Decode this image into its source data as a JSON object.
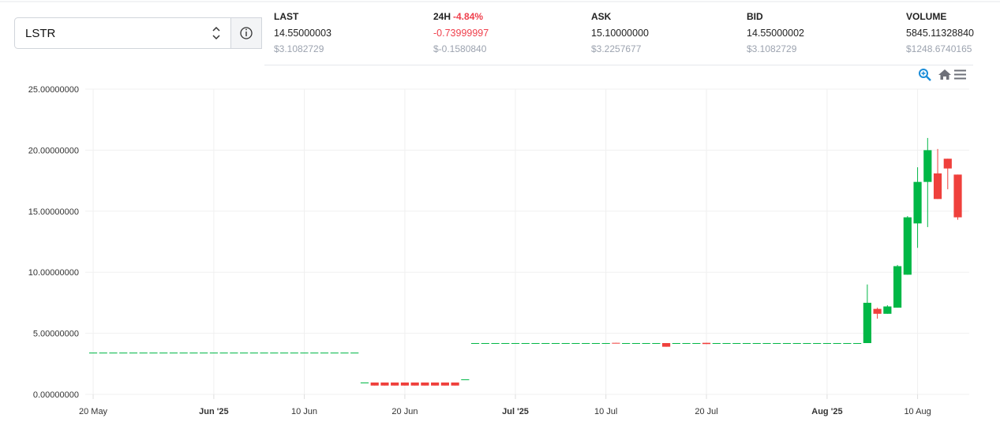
{
  "header": {
    "symbol": "LSTR",
    "stats": [
      {
        "label": "LAST",
        "value": "14.55000003",
        "usd": "$3.1082729"
      },
      {
        "label": "24H",
        "change": "-4.84%",
        "value": "-0.73999997",
        "usd": "$-0.1580840",
        "color": "#ef3f4c"
      },
      {
        "label": "ASK",
        "value": "15.10000000",
        "usd": "$3.2257677"
      },
      {
        "label": "BID",
        "value": "14.55000002",
        "usd": "$3.1082729"
      },
      {
        "label": "VOLUME",
        "value": "5845.11328840",
        "usd": "$1248.6740165"
      }
    ]
  },
  "chart_data": {
    "type": "candlestick",
    "up_color": "#00b746",
    "down_color": "#ef403c",
    "grid": true,
    "x": [
      "2025-05-20",
      "2025-05-21",
      "2025-05-22",
      "2025-05-23",
      "2025-05-24",
      "2025-05-25",
      "2025-05-26",
      "2025-05-27",
      "2025-05-28",
      "2025-05-29",
      "2025-05-30",
      "2025-05-31",
      "2025-06-01",
      "2025-06-02",
      "2025-06-03",
      "2025-06-04",
      "2025-06-05",
      "2025-06-06",
      "2025-06-07",
      "2025-06-08",
      "2025-06-09",
      "2025-06-10",
      "2025-06-11",
      "2025-06-12",
      "2025-06-13",
      "2025-06-14",
      "2025-06-15",
      "2025-06-16",
      "2025-06-17",
      "2025-06-18",
      "2025-06-19",
      "2025-06-20",
      "2025-06-21",
      "2025-06-22",
      "2025-06-23",
      "2025-06-24",
      "2025-06-25",
      "2025-06-26",
      "2025-06-27",
      "2025-06-28",
      "2025-06-29",
      "2025-06-30",
      "2025-07-01",
      "2025-07-02",
      "2025-07-03",
      "2025-07-04",
      "2025-07-05",
      "2025-07-06",
      "2025-07-07",
      "2025-07-08",
      "2025-07-09",
      "2025-07-10",
      "2025-07-11",
      "2025-07-12",
      "2025-07-13",
      "2025-07-14",
      "2025-07-15",
      "2025-07-16",
      "2025-07-17",
      "2025-07-18",
      "2025-07-19",
      "2025-07-20",
      "2025-07-21",
      "2025-07-22",
      "2025-07-23",
      "2025-07-24",
      "2025-07-25",
      "2025-07-26",
      "2025-07-27",
      "2025-07-28",
      "2025-07-29",
      "2025-07-30",
      "2025-07-31",
      "2025-08-01",
      "2025-08-02",
      "2025-08-03",
      "2025-08-04",
      "2025-08-05",
      "2025-08-06",
      "2025-08-07",
      "2025-08-08",
      "2025-08-09",
      "2025-08-10",
      "2025-08-11",
      "2025-08-12",
      "2025-08-13",
      "2025-08-14"
    ],
    "open": [
      3.42,
      3.42,
      3.42,
      3.42,
      3.42,
      3.42,
      3.42,
      3.42,
      3.42,
      3.42,
      3.42,
      3.42,
      3.42,
      3.42,
      3.42,
      3.42,
      3.42,
      3.42,
      3.42,
      3.42,
      3.42,
      3.42,
      3.42,
      3.42,
      3.42,
      3.42,
      3.42,
      0.97,
      0.97,
      0.97,
      0.97,
      0.97,
      0.97,
      0.97,
      0.97,
      0.97,
      0.97,
      1.23,
      4.2,
      4.2,
      4.2,
      4.2,
      4.2,
      4.2,
      4.2,
      4.2,
      4.2,
      4.2,
      4.2,
      4.2,
      4.2,
      4.2,
      4.22,
      4.2,
      4.2,
      4.2,
      4.2,
      4.2,
      4.2,
      4.2,
      4.2,
      4.22,
      4.2,
      4.2,
      4.2,
      4.2,
      4.2,
      4.2,
      4.2,
      4.2,
      4.2,
      4.2,
      4.2,
      4.2,
      4.2,
      4.2,
      4.2,
      4.2,
      7.0,
      6.6,
      7.1,
      9.8,
      14.0,
      17.4,
      18.1,
      19.3,
      18.0
    ],
    "high": [
      3.42,
      3.42,
      3.42,
      3.42,
      3.42,
      3.42,
      3.42,
      3.42,
      3.42,
      3.42,
      3.42,
      3.42,
      3.42,
      3.42,
      3.42,
      3.42,
      3.42,
      3.42,
      3.42,
      3.42,
      3.42,
      3.42,
      3.42,
      3.42,
      3.42,
      3.42,
      3.42,
      0.97,
      0.97,
      0.97,
      0.97,
      0.97,
      0.97,
      0.97,
      0.97,
      0.97,
      0.97,
      1.23,
      4.2,
      4.2,
      4.2,
      4.2,
      4.2,
      4.2,
      4.2,
      4.2,
      4.2,
      4.2,
      4.2,
      4.2,
      4.2,
      4.2,
      4.22,
      4.2,
      4.2,
      4.2,
      4.2,
      4.2,
      4.2,
      4.2,
      4.2,
      4.22,
      4.2,
      4.2,
      4.2,
      4.2,
      4.2,
      4.2,
      4.2,
      4.2,
      4.2,
      4.2,
      4.2,
      4.2,
      4.2,
      4.2,
      4.2,
      9.0,
      7.1,
      7.3,
      10.6,
      14.6,
      18.6,
      21.0,
      20.1,
      19.3,
      18.0
    ],
    "low": [
      3.42,
      3.42,
      3.42,
      3.42,
      3.42,
      3.42,
      3.42,
      3.42,
      3.42,
      3.42,
      3.42,
      3.42,
      3.42,
      3.42,
      3.42,
      3.42,
      3.42,
      3.42,
      3.42,
      3.42,
      3.42,
      3.42,
      3.42,
      3.42,
      3.42,
      3.42,
      3.42,
      0.97,
      0.72,
      0.72,
      0.72,
      0.72,
      0.72,
      0.72,
      0.72,
      0.72,
      0.72,
      1.23,
      4.2,
      4.2,
      4.2,
      4.2,
      4.2,
      4.2,
      4.2,
      4.2,
      4.2,
      4.2,
      4.2,
      4.2,
      4.2,
      4.2,
      4.18,
      4.2,
      4.2,
      4.2,
      4.2,
      3.9,
      4.2,
      4.2,
      4.2,
      4.12,
      4.2,
      4.2,
      4.2,
      4.2,
      4.2,
      4.2,
      4.2,
      4.2,
      4.2,
      4.2,
      4.2,
      4.2,
      4.2,
      4.2,
      4.2,
      4.2,
      6.2,
      6.6,
      7.1,
      9.8,
      12.0,
      13.7,
      16.0,
      16.8,
      14.3
    ],
    "close": [
      3.42,
      3.42,
      3.42,
      3.42,
      3.42,
      3.42,
      3.42,
      3.42,
      3.42,
      3.42,
      3.42,
      3.42,
      3.42,
      3.42,
      3.42,
      3.42,
      3.42,
      3.42,
      3.42,
      3.42,
      3.42,
      3.42,
      3.42,
      3.42,
      3.42,
      3.42,
      3.42,
      0.97,
      0.72,
      0.72,
      0.72,
      0.72,
      0.72,
      0.72,
      0.72,
      0.72,
      0.72,
      1.23,
      4.2,
      4.2,
      4.2,
      4.2,
      4.2,
      4.2,
      4.2,
      4.2,
      4.2,
      4.2,
      4.2,
      4.2,
      4.2,
      4.2,
      4.18,
      4.2,
      4.2,
      4.2,
      4.2,
      3.9,
      4.2,
      4.2,
      4.2,
      4.12,
      4.2,
      4.2,
      4.2,
      4.2,
      4.2,
      4.2,
      4.2,
      4.2,
      4.2,
      4.2,
      4.2,
      4.2,
      4.2,
      4.2,
      4.2,
      7.5,
      6.6,
      7.2,
      10.5,
      14.5,
      17.4,
      20.0,
      16.0,
      18.5,
      14.5
    ],
    "xlim": [
      "2025-05-19",
      "2025-08-16"
    ],
    "xticks": [
      {
        "value": "2025-05-20",
        "label": "20 May"
      },
      {
        "value": "2025-06-01",
        "label": "Jun '25"
      },
      {
        "value": "2025-06-10",
        "label": "10 Jun"
      },
      {
        "value": "2025-06-20",
        "label": "20 Jun"
      },
      {
        "value": "2025-07-01",
        "label": "Jul '25"
      },
      {
        "value": "2025-07-10",
        "label": "10 Jul"
      },
      {
        "value": "2025-07-20",
        "label": "20 Jul"
      },
      {
        "value": "2025-08-01",
        "label": "Aug '25"
      },
      {
        "value": "2025-08-10",
        "label": "10 Aug"
      }
    ],
    "ylim": [
      0,
      25
    ],
    "yticks": [
      {
        "value": 0,
        "label": "0.00000000"
      },
      {
        "value": 5,
        "label": "5.00000000"
      },
      {
        "value": 10,
        "label": "10.00000000"
      },
      {
        "value": 15,
        "label": "15.00000000"
      },
      {
        "value": 20,
        "label": "20.00000000"
      },
      {
        "value": 25,
        "label": "25.00000000"
      }
    ]
  }
}
